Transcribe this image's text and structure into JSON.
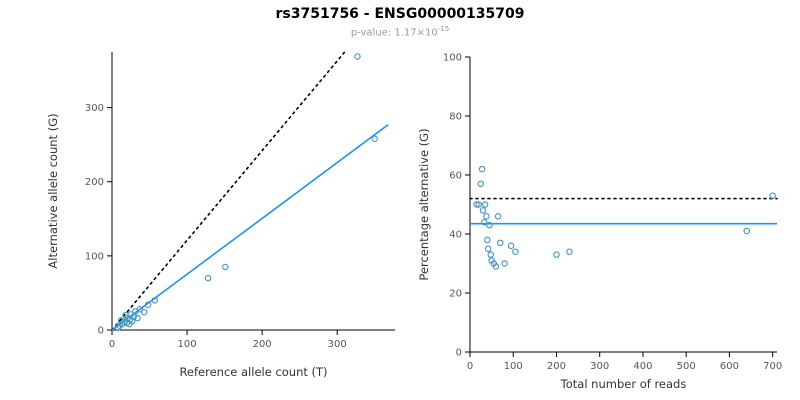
{
  "figure": {
    "title": "rs3751756 - ENSG00000135709",
    "subtitle_prefix": "p-value: ",
    "pvalue_mantissa": "1.17",
    "pvalue_times": "×10",
    "pvalue_exponent": "-15"
  },
  "colors": {
    "point": "#4393C3",
    "fit_line": "#1E90FF",
    "expected_line": "#000000",
    "axis": "#000000",
    "tick_label": "#555555",
    "axis_label": "#333333",
    "title": "#000000",
    "subtitle": "#9a9a9a"
  },
  "chart_data": [
    {
      "name": "allele-counts-scatter",
      "type": "scatter",
      "xlabel": "Reference allele count (T)",
      "ylabel": "Alternative allele count (G)",
      "xlim": [
        0,
        377
      ],
      "ylim": [
        0,
        375
      ],
      "xticks": [
        0,
        100,
        200,
        300
      ],
      "yticks": [
        0,
        100,
        200,
        300
      ],
      "grid": false,
      "legend": "none",
      "points": [
        [
          8,
          3
        ],
        [
          10,
          6
        ],
        [
          12,
          13
        ],
        [
          14,
          8
        ],
        [
          16,
          11
        ],
        [
          18,
          20
        ],
        [
          20,
          10
        ],
        [
          21,
          16
        ],
        [
          23,
          8
        ],
        [
          24,
          14
        ],
        [
          25,
          21
        ],
        [
          27,
          12
        ],
        [
          29,
          18
        ],
        [
          31,
          25
        ],
        [
          34,
          16
        ],
        [
          37,
          28
        ],
        [
          43,
          24
        ],
        [
          48,
          34
        ],
        [
          57,
          40
        ],
        [
          128,
          70
        ],
        [
          151,
          85
        ],
        [
          327,
          369
        ],
        [
          350,
          258
        ]
      ],
      "lines": [
        {
          "name": "expected-line",
          "style": "dotted",
          "color": "#000000",
          "from": [
            0,
            0
          ],
          "to": [
            310,
            375
          ]
        },
        {
          "name": "fit-line",
          "style": "solid",
          "color": "#1E90FF",
          "from": [
            0,
            0
          ],
          "to": [
            368,
            277
          ]
        }
      ]
    },
    {
      "name": "percentage-vs-reads-scatter",
      "type": "scatter",
      "xlabel": "Total number of reads",
      "ylabel": "Percentage alternative (G)",
      "xlim": [
        0,
        710
      ],
      "ylim": [
        0,
        100
      ],
      "xticks": [
        0,
        100,
        200,
        300,
        400,
        500,
        600,
        700
      ],
      "yticks": [
        0,
        20,
        40,
        60,
        80,
        100
      ],
      "grid": false,
      "legend": "none",
      "points": [
        [
          15,
          50
        ],
        [
          20,
          50
        ],
        [
          25,
          57
        ],
        [
          28,
          62
        ],
        [
          30,
          48
        ],
        [
          33,
          44
        ],
        [
          35,
          50
        ],
        [
          38,
          46
        ],
        [
          40,
          38
        ],
        [
          42,
          35
        ],
        [
          45,
          43
        ],
        [
          48,
          33
        ],
        [
          50,
          31
        ],
        [
          55,
          30
        ],
        [
          60,
          29
        ],
        [
          65,
          46
        ],
        [
          70,
          37
        ],
        [
          80,
          30
        ],
        [
          95,
          36
        ],
        [
          105,
          34
        ],
        [
          200,
          33
        ],
        [
          230,
          34
        ],
        [
          640,
          41
        ],
        [
          700,
          53
        ]
      ],
      "lines": [
        {
          "name": "expected-line",
          "style": "dotted",
          "color": "#000000",
          "from": [
            0,
            52
          ],
          "to": [
            710,
            52
          ]
        },
        {
          "name": "fit-line",
          "style": "solid",
          "color": "#1E90FF",
          "from": [
            0,
            43.5
          ],
          "to": [
            710,
            43.5
          ]
        }
      ]
    }
  ]
}
